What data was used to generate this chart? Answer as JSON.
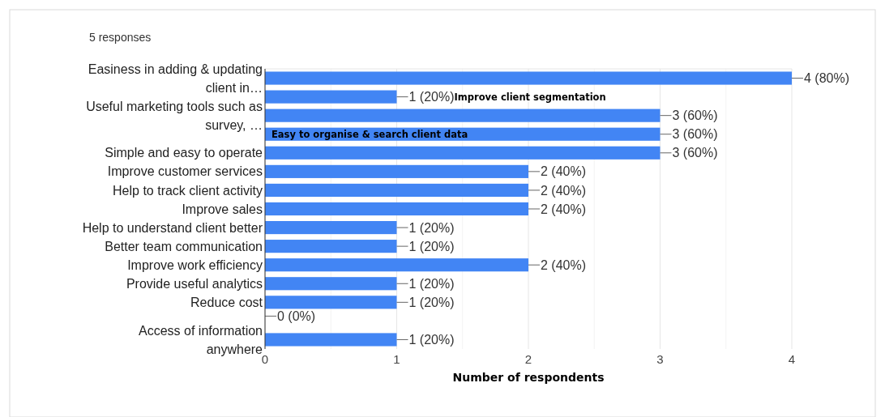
{
  "chart_data": {
    "type": "bar",
    "orientation": "horizontal",
    "title": "5 responses",
    "xlabel": "Number of respondents",
    "categories": [
      "Easiness in adding & updating client in…",
      null,
      "Useful marketing tools such as survey, …",
      null,
      "Simple and easy to operate",
      "Improve customer services",
      "Help to track client activity",
      "Improve sales",
      "Help to understand client better",
      "Better team communication",
      "Improve work efficiency",
      "Provide useful analytics",
      "Reduce cost",
      null,
      "Access of information anywhere"
    ],
    "values": [
      4,
      1,
      3,
      3,
      3,
      2,
      2,
      2,
      1,
      1,
      2,
      1,
      1,
      0,
      1
    ],
    "value_labels": [
      "4 (80%)",
      "1 (20%)",
      "3 (60%)",
      "3 (60%)",
      "3 (60%)",
      "2 (40%)",
      "2 (40%)",
      "2 (40%)",
      "1 (20%)",
      "1 (20%)",
      "2 (40%)",
      "1 (20%)",
      "1 (20%)",
      "0 (0%)",
      "1 (20%)"
    ],
    "color": "#4285f4",
    "xlim": [
      0,
      4
    ],
    "xticks": [
      0,
      {
        "value": 0.5,
        "label": null
      },
      1,
      {
        "value": 1.5,
        "label": null
      },
      2,
      {
        "value": 2.5,
        "label": null
      },
      3,
      {
        "value": 3.5,
        "label": null
      },
      4
    ],
    "grid": "x",
    "annotations": [
      "Improve client segmentation",
      "Easy to organise & search client data"
    ]
  }
}
